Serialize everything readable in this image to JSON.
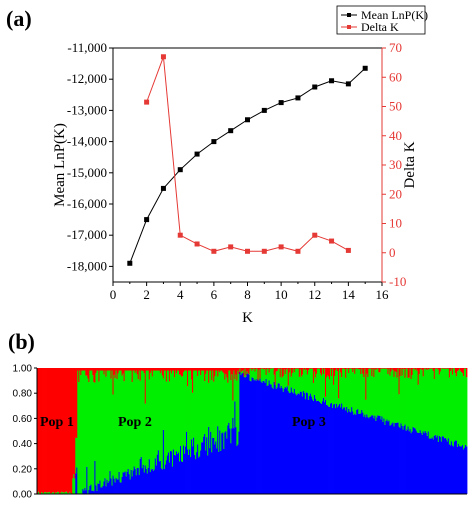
{
  "panel_a_label": "(a)",
  "panel_b_label": "(b)",
  "chart_data": [
    {
      "type": "line",
      "xlabel": "K",
      "ylabel_left": "Mean LnP(K)",
      "ylabel_right": "Delta K",
      "xlim": [
        0,
        16
      ],
      "ylim_left": [
        -18500,
        -11000
      ],
      "ylim_right": [
        -10,
        70
      ],
      "x_ticks": [
        "0",
        "2",
        "4",
        "6",
        "8",
        "10",
        "12",
        "14",
        "16"
      ],
      "y_ticks_left": [
        "-11,000",
        "-12,000",
        "-13,000",
        "-14,000",
        "-15,000",
        "-16,000",
        "-17,000",
        "-18,000"
      ],
      "y_ticks_right": [
        "70",
        "60",
        "50",
        "40",
        "30",
        "20",
        "10",
        "0",
        "-10"
      ],
      "legend": {
        "placement": "top-right",
        "entries": [
          "Mean LnP(K)",
          "Delta K"
        ]
      },
      "colors": {
        "mean_lnp": "#000000",
        "delta_k": "#e53935"
      },
      "series": [
        {
          "name": "Mean LnP(K)",
          "axis": "left",
          "x": [
            1,
            2,
            3,
            4,
            5,
            6,
            7,
            8,
            9,
            10,
            11,
            12,
            13,
            14,
            15
          ],
          "values": [
            -17900,
            -16500,
            -15500,
            -14900,
            -14400,
            -14000,
            -13650,
            -13300,
            -13000,
            -12750,
            -12600,
            -12250,
            -12050,
            -12150,
            -11650
          ]
        },
        {
          "name": "Delta K",
          "axis": "right",
          "x": [
            2,
            3,
            4,
            5,
            6,
            7,
            8,
            9,
            10,
            11,
            12,
            13,
            14
          ],
          "values": [
            51.5,
            67,
            6,
            3,
            0.5,
            2,
            0.5,
            0.5,
            2,
            0.5,
            6,
            4,
            0.8
          ]
        }
      ]
    },
    {
      "type": "bar",
      "stacked": true,
      "ylim": [
        0,
        1
      ],
      "y_ticks": [
        "1.00",
        "0.80",
        "0.60",
        "0.40",
        "0.20",
        "0.00"
      ],
      "colors": {
        "pop1": "#ff0000",
        "pop2": "#00ee00",
        "pop3": "#0000ff"
      },
      "groups": [
        {
          "name": "Pop 1",
          "n": 40
        },
        {
          "name": "Pop 2",
          "n": 161
        },
        {
          "name": "Pop 3",
          "n": 226
        }
      ]
    }
  ]
}
